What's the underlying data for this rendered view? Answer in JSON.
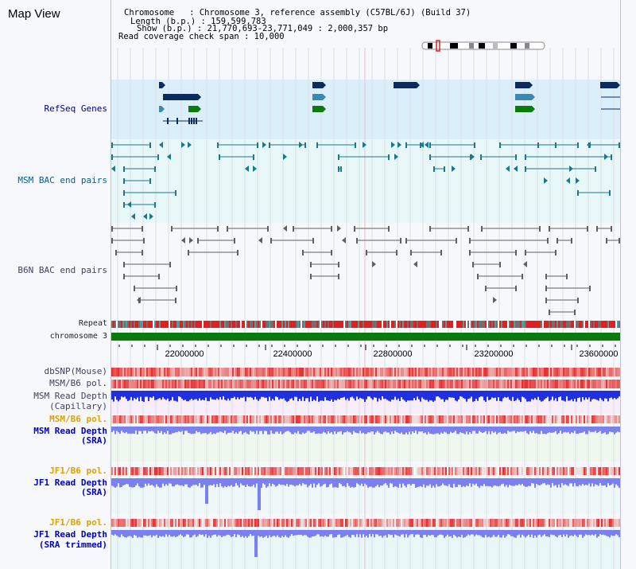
{
  "header": {
    "title": "Map View",
    "info_lines": [
      "Chromosome   : Chromosome 3, reference assembly (C57BL/6J) (Build 37)",
      "Length (b.p.) : 159,599,783",
      "Show (b.p.) : 21,770,693-23,771,049 : 2,000,357 bp",
      "Read coverage check span : 10,000"
    ]
  },
  "labels": {
    "refseq": "RefSeq Genes",
    "msm_bac": "MSM BAC end pairs",
    "b6n_bac": "B6N BAC end pairs",
    "repeat": "Repeat",
    "chromosome": "chromosome 3",
    "dbsnp": "dbSNP(Mouse)",
    "msm_b6_pol_1": "MSM/B6 pol.",
    "msm_depth_cap_1": "MSM Read Depth",
    "msm_depth_cap_2": "(Capillary)",
    "msm_b6_pol_2": "MSM/B6 pol.",
    "msm_depth_sra_1": "MSM Read Depth",
    "msm_depth_sra_2": "(SRA)",
    "jf1_pol_1": "JF1/B6 pol.",
    "jf1_depth_1": "JF1 Read Depth",
    "jf1_depth_2": "(SRA)",
    "jf1_pol_2": "JF1/B6 pol.",
    "jf1_trim_1": "JF1 Read Depth",
    "jf1_trim_2": "(SRA trimmed)"
  },
  "axis": {
    "ticks": [
      "22000000",
      "22400000",
      "22800000",
      "23200000",
      "23600000"
    ]
  },
  "colors": {
    "refseq_bg": "#dbeffa",
    "bac_bg": "#e8f8f8",
    "gene_navy": "#0b2a5e",
    "gene_teal": "#3a8ab0",
    "gene_green": "#0a7a0a",
    "bac_teal": "#1a7890",
    "bac_gray": "#606060",
    "chromosome": "#0a7a0a",
    "depth_blue": "#2030e0",
    "depth_light": "#7a80f0",
    "polymorphism": "#e02020"
  }
}
